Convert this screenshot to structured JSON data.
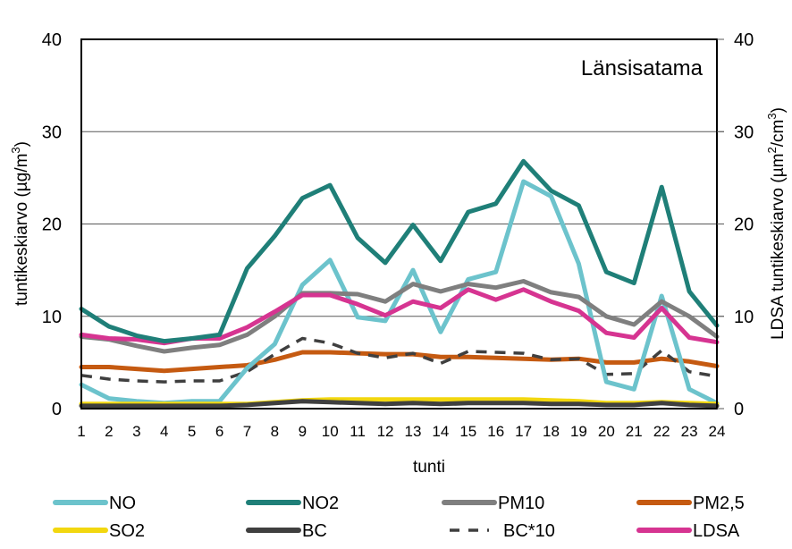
{
  "chart_data": {
    "type": "line",
    "title": "Länsisatama",
    "xlabel": "tunti",
    "ylabel_left": "tuntikeskiarvo (µg/m³)",
    "ylabel_left_parts": [
      "tuntikeskiarvo (µg/m",
      "3",
      ")"
    ],
    "ylabel_right": "LDSA tuntikeskiarvo (µm²/cm³)",
    "ylabel_right_parts": [
      "LDSA tuntikeskiarvo (µm",
      "2",
      "/cm",
      "3",
      ")"
    ],
    "ylim": [
      0,
      40
    ],
    "ylim_right": [
      0,
      40
    ],
    "yticks": [
      "0",
      "10",
      "20",
      "30",
      "40"
    ],
    "yticks_right": [
      "0",
      "10",
      "20",
      "30",
      "40"
    ],
    "grid": true,
    "legend_position": "bottom",
    "x": [
      "1",
      "2",
      "3",
      "4",
      "5",
      "6",
      "7",
      "8",
      "9",
      "10",
      "11",
      "12",
      "13",
      "14",
      "15",
      "16",
      "17",
      "18",
      "19",
      "20",
      "21",
      "22",
      "23",
      "24"
    ],
    "series": [
      {
        "name": "NO",
        "color": "#6CC3CC",
        "dash": false,
        "axis": "left",
        "values": [
          2.6,
          1.1,
          0.8,
          0.6,
          0.8,
          0.8,
          4.4,
          7.0,
          13.4,
          16.1,
          9.9,
          9.5,
          15.0,
          8.3,
          14.0,
          14.8,
          24.6,
          23.0,
          15.7,
          2.9,
          2.1,
          12.2,
          2.1,
          0.6
        ]
      },
      {
        "name": "NO2",
        "color": "#1F7F78",
        "dash": false,
        "axis": "left",
        "values": [
          10.8,
          8.9,
          7.9,
          7.3,
          7.6,
          8.0,
          15.2,
          18.7,
          22.8,
          24.2,
          18.5,
          15.8,
          19.9,
          16.0,
          21.3,
          22.2,
          26.8,
          23.6,
          22.0,
          14.8,
          13.6,
          24.0,
          12.7,
          9.0
        ]
      },
      {
        "name": "PM10",
        "color": "#7F7F7F",
        "dash": false,
        "axis": "left",
        "values": [
          7.8,
          7.5,
          6.8,
          6.2,
          6.6,
          6.9,
          8.0,
          10.0,
          12.5,
          12.5,
          12.4,
          11.6,
          13.5,
          12.7,
          13.5,
          13.1,
          13.8,
          12.6,
          12.1,
          10.0,
          9.1,
          11.6,
          10.0,
          7.8
        ]
      },
      {
        "name": "PM2,5",
        "color": "#C55A11",
        "dash": false,
        "axis": "left",
        "values": [
          4.5,
          4.5,
          4.3,
          4.1,
          4.3,
          4.5,
          4.7,
          5.3,
          6.1,
          6.1,
          6.0,
          5.9,
          5.9,
          5.6,
          5.6,
          5.5,
          5.4,
          5.3,
          5.4,
          5.0,
          5.0,
          5.4,
          5.1,
          4.6
        ]
      },
      {
        "name": "SO2",
        "color": "#F2D70F",
        "dash": false,
        "axis": "left",
        "values": [
          0.5,
          0.5,
          0.5,
          0.5,
          0.5,
          0.5,
          0.5,
          0.7,
          0.9,
          1.0,
          1.0,
          1.0,
          1.0,
          1.0,
          1.0,
          1.0,
          1.0,
          0.9,
          0.8,
          0.6,
          0.6,
          0.7,
          0.6,
          0.5
        ]
      },
      {
        "name": "BC",
        "color": "#3F3F3F",
        "dash": false,
        "axis": "left",
        "values": [
          0.3,
          0.3,
          0.3,
          0.3,
          0.3,
          0.3,
          0.4,
          0.6,
          0.8,
          0.7,
          0.6,
          0.5,
          0.6,
          0.5,
          0.6,
          0.6,
          0.6,
          0.5,
          0.5,
          0.4,
          0.4,
          0.6,
          0.4,
          0.3
        ]
      },
      {
        "name": "BC*10",
        "color": "#3F3F3F",
        "dash": true,
        "axis": "left",
        "values": [
          3.6,
          3.2,
          3.0,
          2.9,
          3.0,
          3.0,
          4.0,
          5.9,
          7.6,
          7.1,
          6.0,
          5.5,
          6.0,
          4.9,
          6.2,
          6.1,
          6.0,
          5.3,
          5.4,
          3.7,
          3.8,
          6.3,
          4.0,
          3.5
        ]
      },
      {
        "name": "LDSA",
        "color": "#D63491",
        "dash": false,
        "axis": "right",
        "values": [
          8.0,
          7.6,
          7.5,
          7.1,
          7.6,
          7.6,
          8.8,
          10.5,
          12.3,
          12.3,
          11.3,
          10.1,
          11.6,
          10.9,
          12.9,
          11.8,
          12.9,
          11.6,
          10.6,
          8.2,
          7.7,
          10.9,
          7.7,
          7.2
        ]
      }
    ],
    "legend_order": [
      "NO",
      "NO2",
      "PM10",
      "PM2,5",
      "SO2",
      "BC",
      "BC*10",
      "LDSA"
    ]
  }
}
